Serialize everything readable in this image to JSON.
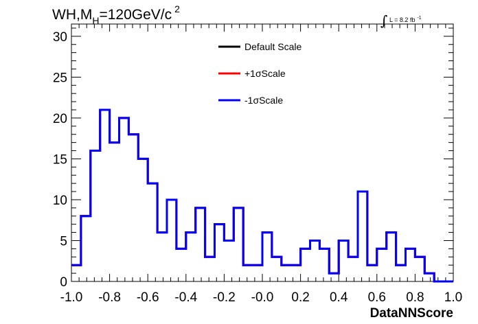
{
  "chart_data": {
    "type": "step-histogram",
    "title_main": "WH,M",
    "title_subscript": "H",
    "title_rest": "=120GeV/c",
    "title_superscript": "2",
    "lumi_integral": "∫",
    "lumi_text": "L = 8.2 fb",
    "lumi_superscript": "-1",
    "xlabel": "DataNNScore",
    "ylabel": "",
    "xlim": [
      -1.0,
      1.0
    ],
    "ylim": [
      0,
      31.5
    ],
    "x_tick_labels": [
      "-1.0",
      "-0.8",
      "-0.6",
      "-0.4",
      "-0.2",
      "-0.0",
      "0.2",
      "0.4",
      "0.6",
      "0.8",
      "1.0"
    ],
    "x_tick_values": [
      -1.0,
      -0.8,
      -0.6,
      -0.4,
      -0.2,
      0.0,
      0.2,
      0.4,
      0.6,
      0.8,
      1.0
    ],
    "y_tick_labels": [
      "0",
      "5",
      "10",
      "15",
      "20",
      "25",
      "30"
    ],
    "y_tick_values": [
      0,
      5,
      10,
      15,
      20,
      25,
      30
    ],
    "bin_edges_start": -1.0,
    "bin_width": 0.05,
    "grid": false,
    "legend_position": "top-center",
    "legend": [
      {
        "label": "Default Scale",
        "color": "#000000"
      },
      {
        "label": "+1σScale",
        "color": "#ff0000"
      },
      {
        "label": "-1σScale",
        "color": "#0000ff"
      }
    ],
    "series": [
      {
        "name": "Default Scale",
        "color": "#000000",
        "values": [
          2,
          8,
          16,
          21,
          17,
          20,
          18,
          15,
          12,
          6,
          10,
          4,
          6,
          9,
          3,
          7,
          5,
          9,
          2,
          2,
          6,
          3,
          2,
          2,
          4,
          5,
          4,
          1,
          5,
          3,
          11,
          2,
          4,
          6,
          2,
          4,
          3,
          1,
          0,
          0
        ]
      },
      {
        "name": "+1σScale",
        "color": "#ff0000",
        "values": [
          2,
          8,
          16,
          21,
          17,
          20,
          18,
          15,
          12,
          6,
          10,
          4,
          6,
          9,
          3,
          7,
          5,
          9,
          2,
          2,
          6,
          3,
          2,
          2,
          4,
          5,
          4,
          1,
          5,
          3,
          11,
          2,
          4,
          6,
          2,
          4,
          3,
          1,
          0,
          0
        ]
      },
      {
        "name": "-1σScale",
        "color": "#0000ff",
        "values": [
          2,
          8,
          16,
          21,
          17,
          20,
          18,
          15,
          12,
          6,
          10,
          4,
          6,
          9,
          3,
          7,
          5,
          9,
          2,
          2,
          6,
          3,
          2,
          2,
          4,
          5,
          4,
          1,
          5,
          3,
          11,
          2,
          4,
          6,
          2,
          4,
          3,
          1,
          0,
          0
        ]
      }
    ]
  }
}
